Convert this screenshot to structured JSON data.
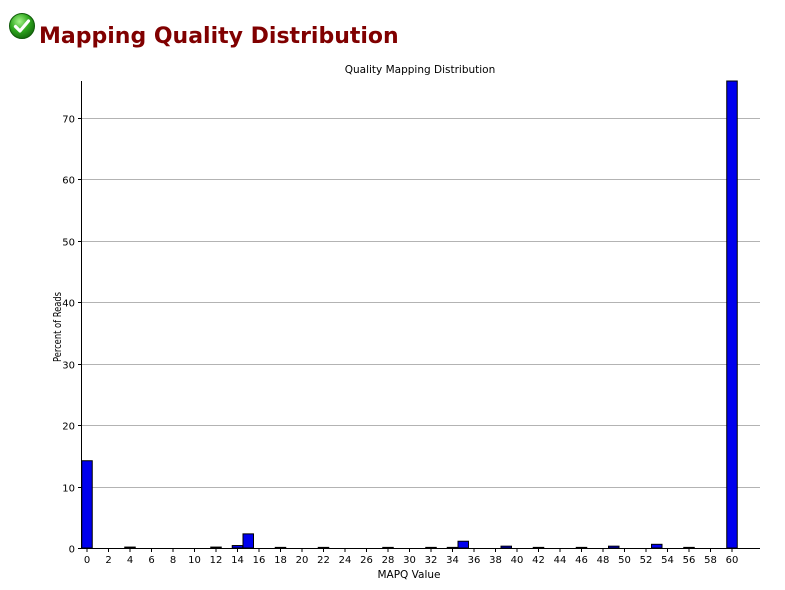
{
  "header": {
    "title": "Mapping Quality Distribution",
    "status_icon": "green-checkmark-icon"
  },
  "colors": {
    "title": "#800000",
    "bar_fill": "#0000ee",
    "bar_stroke": "#000000",
    "grid": "#b3b3b3"
  },
  "chart_data": {
    "type": "bar",
    "title": "Quality Mapping Distribution",
    "xlabel": "MAPQ Value",
    "ylabel": "Percent of Reads",
    "x_ticks": [
      0,
      2,
      4,
      6,
      8,
      10,
      12,
      14,
      16,
      18,
      20,
      22,
      24,
      26,
      28,
      30,
      32,
      34,
      36,
      38,
      40,
      42,
      44,
      46,
      48,
      50,
      52,
      54,
      56,
      58,
      60
    ],
    "y_ticks": [
      0,
      10,
      20,
      30,
      40,
      50,
      60,
      70
    ],
    "xlim": [
      0,
      61
    ],
    "ylim": [
      0,
      76
    ],
    "grid": true,
    "legend": "none",
    "categories": [
      0,
      1,
      2,
      3,
      4,
      5,
      6,
      7,
      8,
      9,
      10,
      11,
      12,
      13,
      14,
      15,
      16,
      17,
      18,
      19,
      20,
      21,
      22,
      23,
      24,
      25,
      26,
      27,
      28,
      29,
      30,
      31,
      32,
      33,
      34,
      35,
      36,
      37,
      38,
      39,
      40,
      41,
      42,
      43,
      44,
      45,
      46,
      47,
      48,
      49,
      50,
      51,
      52,
      53,
      54,
      55,
      56,
      57,
      58,
      59,
      60
    ],
    "values": [
      14.2,
      0,
      0,
      0,
      0.15,
      0,
      0,
      0,
      0,
      0,
      0,
      0,
      0.15,
      0,
      0.4,
      2.3,
      0,
      0,
      0.1,
      0,
      0,
      0,
      0.1,
      0,
      0,
      0,
      0,
      0,
      0.1,
      0,
      0,
      0,
      0.1,
      0,
      0.1,
      1.1,
      0,
      0,
      0,
      0.3,
      0,
      0,
      0.1,
      0,
      0,
      0,
      0.1,
      0,
      0,
      0.3,
      0,
      0,
      0,
      0.6,
      0,
      0,
      0.1,
      0,
      0,
      0,
      76.0
    ]
  }
}
